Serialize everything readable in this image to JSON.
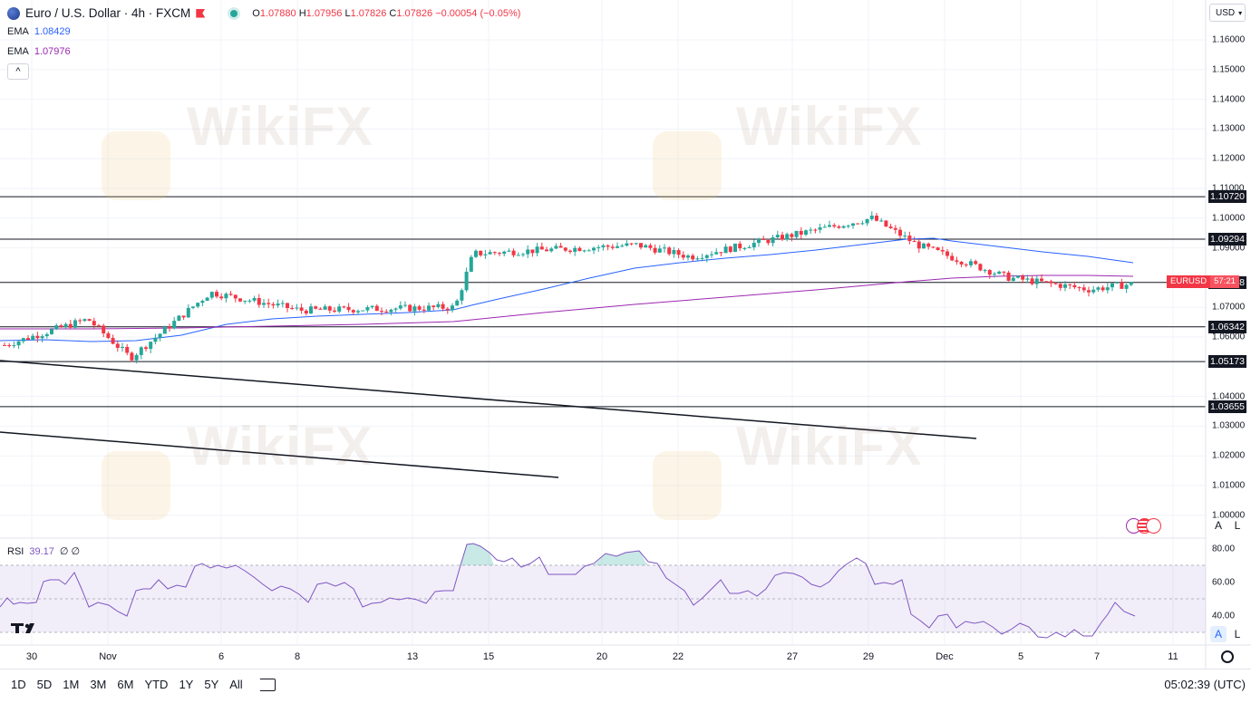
{
  "header": {
    "symbol_title": "Euro / U.S. Dollar · 4h · FXCM",
    "ohlc_o_label": "O",
    "ohlc_o": "1.07880",
    "ohlc_h_label": "H",
    "ohlc_h": "1.07956",
    "ohlc_l_label": "L",
    "ohlc_l": "1.07826",
    "ohlc_c_label": "C",
    "ohlc_c": "1.07826",
    "ohlc_change": "−0.00054 (−0.05%)"
  },
  "indicators": {
    "ema1_label": "EMA",
    "ema1_value": "1.08429",
    "ema2_label": "EMA",
    "ema2_value": "1.07976",
    "rsi_label": "RSI",
    "rsi_value": "39.17",
    "rsi_extra": "∅ ∅"
  },
  "price_axis": {
    "currency": "USD",
    "ticks": [
      "1.16000",
      "1.15000",
      "1.14000",
      "1.13000",
      "1.12000",
      "1.11000",
      "1.10000",
      "1.09000",
      "1.07000",
      "1.06000",
      "1.04000",
      "1.03000",
      "1.02000",
      "1.01000",
      "1.00000"
    ],
    "level_tags": [
      "1.10720",
      "1.09294",
      "1.07838",
      "1.06342",
      "1.05173",
      "1.03655"
    ],
    "symbol_tag": "EURUSD",
    "countdown": "57:21",
    "rsi_ticks": [
      "80.00",
      "60.00",
      "40.00"
    ],
    "auto_label": "A",
    "log_label": "L"
  },
  "time_axis": {
    "ticks": [
      "30",
      "Nov",
      "6",
      "8",
      "13",
      "15",
      "20",
      "22",
      "27",
      "29",
      "Dec",
      "5",
      "7",
      "11"
    ]
  },
  "bottom_toolbar": {
    "timeframes": [
      "1D",
      "5D",
      "1M",
      "3M",
      "6M",
      "YTD",
      "1Y",
      "5Y",
      "All"
    ],
    "clock": "05:02:39 (UTC)"
  },
  "watermark": "WikiFX",
  "colors": {
    "up": "#26a69a",
    "down": "#f23645",
    "ema_fast": "#2962ff",
    "ema_slow": "#9c27b0",
    "rsi": "#7e57c2"
  },
  "chart_data": {
    "type": "candlestick",
    "title": "Euro / U.S. Dollar · 4h · FXCM",
    "horizontal_levels": [
      1.1072,
      1.09294,
      1.07838,
      1.06342,
      1.05173,
      1.03655
    ],
    "close_path_key_points": [
      {
        "x": "30",
        "y": 1.057
      },
      {
        "x": "Nov",
        "y": 1.066
      },
      {
        "x": "Nov",
        "y": 1.053
      },
      {
        "x": "6",
        "y": 1.075
      },
      {
        "x": "8",
        "y": 1.069
      },
      {
        "x": "13",
        "y": 1.07
      },
      {
        "x": "15",
        "y": 1.088
      },
      {
        "x": "20",
        "y": 1.091
      },
      {
        "x": "22",
        "y": 1.09
      },
      {
        "x": "27",
        "y": 1.095
      },
      {
        "x": "29",
        "y": 1.1
      },
      {
        "x": "Dec",
        "y": 1.091
      },
      {
        "x": "5",
        "y": 1.08
      },
      {
        "x": "7",
        "y": 1.076
      },
      {
        "x": "7",
        "y": 1.078
      }
    ],
    "ylim": [
      1.0,
      1.16
    ]
  }
}
